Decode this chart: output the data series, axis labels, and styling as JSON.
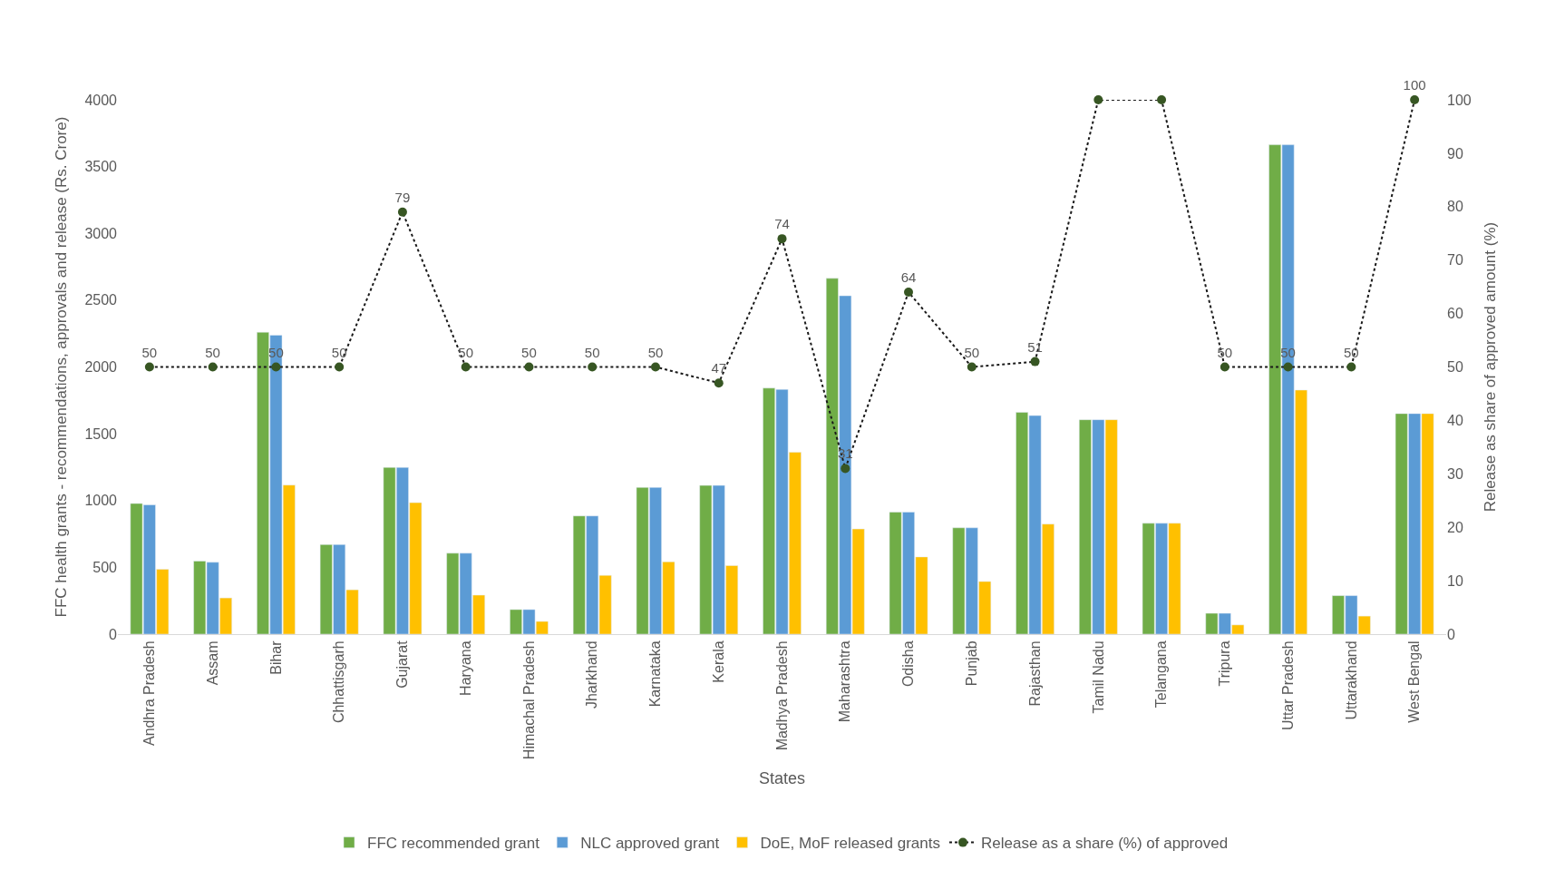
{
  "chart_data": {
    "type": "bar",
    "xlabel": "States",
    "ylabel": "FFC health grants - recommendations, approvals and release (Rs. Crore)",
    "y2label": "Release as share of approved amount (%)",
    "categories": [
      "Andhra Pradesh",
      "Assam",
      "Bihar",
      "Chhattisgarh",
      "Gujarat",
      "Haryana",
      "Himachal Pradesh",
      "Jharkhand",
      "Karnataka",
      "Kerala",
      "Madhya Pradesh",
      "Maharashtra",
      "Odisha",
      "Punjab",
      "Rajasthan",
      "Tamil Nadu",
      "Telangana",
      "Tripura",
      "Uttar Pradesh",
      "Uttarakhand",
      "West Bengal"
    ],
    "series": [
      {
        "name": "FFC recommended grant",
        "color": "#70ad47",
        "values": [
          978,
          547,
          2260,
          670,
          1248,
          606,
          184,
          885,
          1098,
          1113,
          1842,
          2663,
          913,
          796,
          1660,
          1605,
          830,
          156,
          3663,
          288,
          1651
        ]
      },
      {
        "name": "NLC approved grant",
        "color": "#5b9bd5",
        "values": [
          968,
          538,
          2238,
          670,
          1248,
          606,
          184,
          885,
          1098,
          1113,
          1832,
          2533,
          913,
          796,
          1636,
          1605,
          830,
          156,
          3663,
          288,
          1651
        ]
      },
      {
        "name": "DoE, MoF released grants",
        "color": "#ffc000",
        "values": [
          486,
          271,
          1116,
          332,
          984,
          292,
          95,
          440,
          541,
          513,
          1362,
          787,
          578,
          394,
          824,
          1605,
          830,
          69,
          1827,
          135,
          1651
        ]
      },
      {
        "name": "Release as a share (%) of approved",
        "type": "line",
        "axis": "y2",
        "color": "#375623",
        "marker": "circle",
        "line_style": "dotted",
        "values": [
          50,
          50,
          50,
          50,
          79,
          50,
          50,
          50,
          50,
          47,
          74,
          31,
          64,
          50,
          51,
          100,
          100,
          50,
          50,
          50,
          100
        ],
        "value_labels": [
          "50",
          "50",
          "50",
          "50",
          "79",
          "50",
          "50",
          "50",
          "50",
          "47",
          "74",
          "31",
          "64",
          "50",
          "51",
          null,
          null,
          "50",
          "50",
          "50",
          "100"
        ]
      }
    ],
    "ylim": [
      0,
      4000
    ],
    "yticks": [
      0,
      500,
      1000,
      1500,
      2000,
      2500,
      3000,
      3500,
      4000
    ],
    "y2lim": [
      0,
      100
    ],
    "y2ticks": [
      0,
      10,
      20,
      30,
      40,
      50,
      60,
      70,
      80,
      90,
      100
    ],
    "legend": "bottom"
  }
}
